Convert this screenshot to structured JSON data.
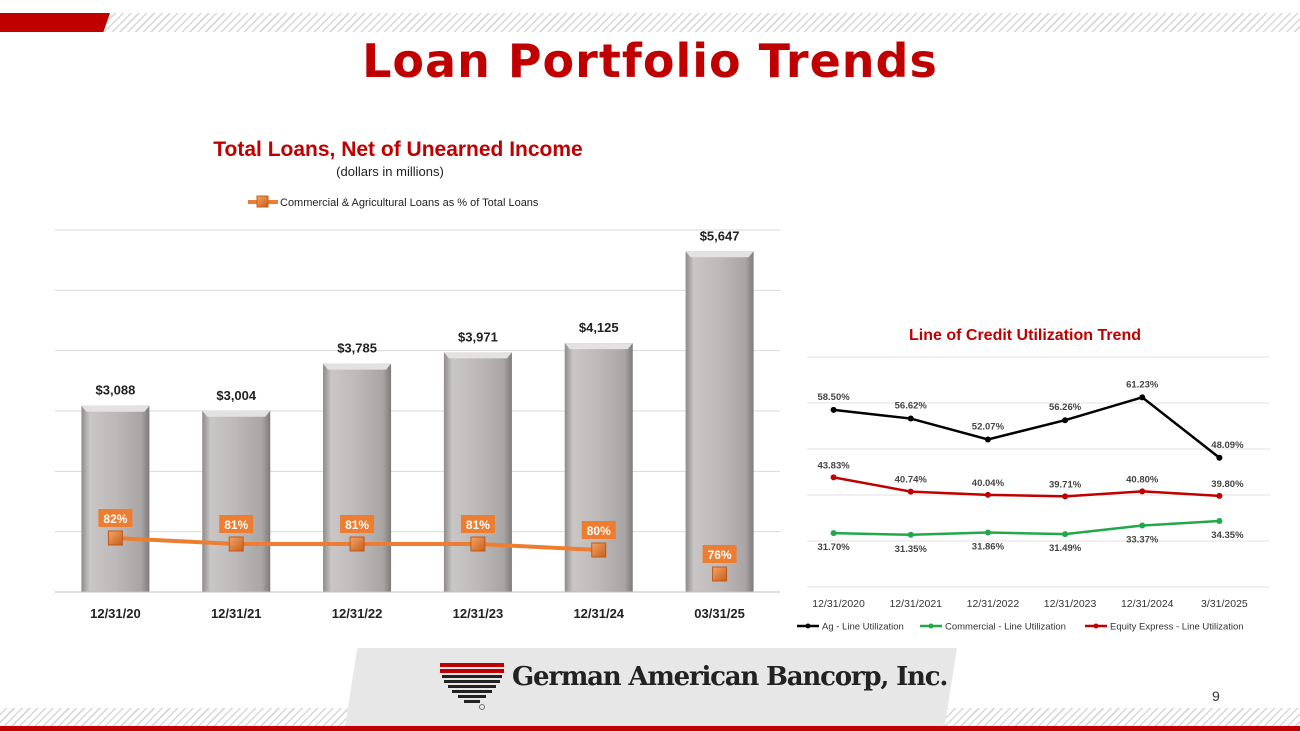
{
  "slide": {
    "title": "Loan Portfolio Trends",
    "company": "German American Bancorp, Inc.",
    "page_number": "9",
    "colors": {
      "brand_red": "#c00000",
      "bar_gray": "#b8b4b4",
      "line_orange": "#ed7d31"
    }
  },
  "chart_data": [
    {
      "type": "bar",
      "title": "Total Loans, Net of Unearned Income",
      "subtitle": "(dollars in millions)",
      "categories": [
        "12/31/20",
        "12/31/21",
        "12/31/22",
        "12/31/23",
        "12/31/24",
        "03/31/25"
      ],
      "values": [
        3088,
        3004,
        3785,
        3971,
        4125,
        5647
      ],
      "value_labels": [
        "$3,088",
        "$3,004",
        "$3,785",
        "$3,971",
        "$4,125",
        "$5,647"
      ],
      "ylim": [
        0,
        6000
      ],
      "grid": true,
      "overlay_line": {
        "name": "Commercial & Agricultural Loans as % of Total Loans",
        "values": [
          82,
          81,
          81,
          81,
          80,
          76
        ],
        "labels": [
          "82%",
          "81%",
          "81%",
          "81%",
          "80%",
          "76%"
        ],
        "connected_points": 5
      },
      "legend_position": "top"
    },
    {
      "type": "line",
      "title": "Line of Credit Utilization Trend",
      "categories": [
        "12/31/2020",
        "12/31/2021",
        "12/31/2022",
        "12/31/2023",
        "12/31/2024",
        "3/31/2025"
      ],
      "ylim": [
        0.2,
        0.7
      ],
      "grid": true,
      "legend_position": "bottom",
      "series": [
        {
          "name": "Ag - Line Utilization",
          "color": "#000000",
          "values": [
            58.5,
            56.62,
            52.07,
            56.26,
            61.23,
            48.09
          ],
          "labels": [
            "58.50%",
            "56.62%",
            "52.07%",
            "56.26%",
            "61.23%",
            "48.09%"
          ]
        },
        {
          "name": "Commercial - Line Utilization",
          "color": "#22a84a",
          "values": [
            31.7,
            31.35,
            31.86,
            31.49,
            33.37,
            34.35
          ],
          "labels": [
            "31.70%",
            "31.35%",
            "31.86%",
            "31.49%",
            "33.37%",
            "34.35%"
          ]
        },
        {
          "name": "Equity Express - Line Utilization",
          "color": "#c00000",
          "values": [
            43.83,
            40.74,
            40.04,
            39.71,
            40.8,
            39.8
          ],
          "labels": [
            "43.83%",
            "40.74%",
            "40.04%",
            "39.71%",
            "40.80%",
            "39.80%"
          ]
        }
      ]
    }
  ]
}
